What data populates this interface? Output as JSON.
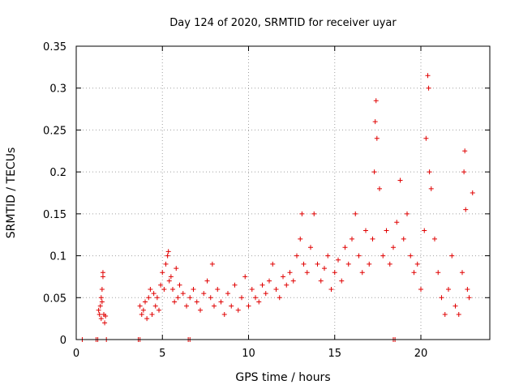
{
  "chart_data": {
    "type": "scatter",
    "title": "Day 124 of 2020, SRMTID for receiver uyar",
    "xlabel": "GPS time / hours",
    "ylabel": "SRMTID / TECUs",
    "xlim": [
      0,
      24
    ],
    "ylim": [
      0,
      0.35
    ],
    "x_ticks": [
      0,
      5,
      10,
      15,
      20
    ],
    "y_ticks": [
      0,
      0.05,
      0.1,
      0.15,
      0.2,
      0.25,
      0.3,
      0.35
    ],
    "x_tick_labels": [
      "0",
      "5",
      "10",
      "15",
      "20"
    ],
    "y_tick_labels": [
      "0",
      "0.05",
      "0.1",
      "0.15",
      "0.2",
      "0.25",
      "0.3",
      "0.35"
    ],
    "grid": true,
    "marker": "+",
    "color": "#e00000",
    "series": [
      {
        "name": "SRMTID",
        "points": [
          [
            0.35,
            0.0
          ],
          [
            1.15,
            0.0
          ],
          [
            1.25,
            0.0
          ],
          [
            1.75,
            0.0
          ],
          [
            3.6,
            0.0
          ],
          [
            3.7,
            0.0
          ],
          [
            6.5,
            0.0
          ],
          [
            6.6,
            0.0
          ],
          [
            18.4,
            0.0
          ],
          [
            18.5,
            0.0
          ],
          [
            1.3,
            0.035
          ],
          [
            1.35,
            0.03
          ],
          [
            1.4,
            0.04
          ],
          [
            1.45,
            0.025
          ],
          [
            1.5,
            0.045
          ],
          [
            1.55,
            0.08
          ],
          [
            1.55,
            0.075
          ],
          [
            1.5,
            0.06
          ],
          [
            1.6,
            0.03
          ],
          [
            1.65,
            0.02
          ],
          [
            1.7,
            0.028
          ],
          [
            1.45,
            0.05
          ],
          [
            3.7,
            0.04
          ],
          [
            3.8,
            0.03
          ],
          [
            3.9,
            0.035
          ],
          [
            4.0,
            0.045
          ],
          [
            4.1,
            0.025
          ],
          [
            4.2,
            0.05
          ],
          [
            4.3,
            0.06
          ],
          [
            4.4,
            0.03
          ],
          [
            4.5,
            0.055
          ],
          [
            4.6,
            0.04
          ],
          [
            4.7,
            0.05
          ],
          [
            4.8,
            0.035
          ],
          [
            4.9,
            0.065
          ],
          [
            5.0,
            0.08
          ],
          [
            5.1,
            0.06
          ],
          [
            5.2,
            0.09
          ],
          [
            5.3,
            0.1
          ],
          [
            5.35,
            0.105
          ],
          [
            5.4,
            0.07
          ],
          [
            5.5,
            0.075
          ],
          [
            5.6,
            0.06
          ],
          [
            5.7,
            0.045
          ],
          [
            5.8,
            0.085
          ],
          [
            5.9,
            0.05
          ],
          [
            6.0,
            0.065
          ],
          [
            6.2,
            0.055
          ],
          [
            6.4,
            0.04
          ],
          [
            6.6,
            0.05
          ],
          [
            6.8,
            0.06
          ],
          [
            7.0,
            0.045
          ],
          [
            7.2,
            0.035
          ],
          [
            7.4,
            0.055
          ],
          [
            7.6,
            0.07
          ],
          [
            7.8,
            0.05
          ],
          [
            7.9,
            0.09
          ],
          [
            8.0,
            0.04
          ],
          [
            8.2,
            0.06
          ],
          [
            8.4,
            0.045
          ],
          [
            8.6,
            0.03
          ],
          [
            8.8,
            0.055
          ],
          [
            9.0,
            0.04
          ],
          [
            9.2,
            0.065
          ],
          [
            9.4,
            0.035
          ],
          [
            9.6,
            0.05
          ],
          [
            9.8,
            0.075
          ],
          [
            10.0,
            0.04
          ],
          [
            10.2,
            0.06
          ],
          [
            10.4,
            0.05
          ],
          [
            10.6,
            0.045
          ],
          [
            10.8,
            0.065
          ],
          [
            11.0,
            0.055
          ],
          [
            11.2,
            0.07
          ],
          [
            11.4,
            0.09
          ],
          [
            11.6,
            0.06
          ],
          [
            11.8,
            0.05
          ],
          [
            12.0,
            0.075
          ],
          [
            12.2,
            0.065
          ],
          [
            12.4,
            0.08
          ],
          [
            12.6,
            0.07
          ],
          [
            12.8,
            0.1
          ],
          [
            13.0,
            0.12
          ],
          [
            13.1,
            0.15
          ],
          [
            13.2,
            0.09
          ],
          [
            13.4,
            0.08
          ],
          [
            13.6,
            0.11
          ],
          [
            13.8,
            0.15
          ],
          [
            14.0,
            0.09
          ],
          [
            14.2,
            0.07
          ],
          [
            14.4,
            0.085
          ],
          [
            14.6,
            0.1
          ],
          [
            14.8,
            0.06
          ],
          [
            15.0,
            0.08
          ],
          [
            15.2,
            0.095
          ],
          [
            15.4,
            0.07
          ],
          [
            15.6,
            0.11
          ],
          [
            15.8,
            0.09
          ],
          [
            16.0,
            0.12
          ],
          [
            16.2,
            0.15
          ],
          [
            16.4,
            0.1
          ],
          [
            16.6,
            0.08
          ],
          [
            16.8,
            0.13
          ],
          [
            17.0,
            0.09
          ],
          [
            17.2,
            0.12
          ],
          [
            17.3,
            0.2
          ],
          [
            17.35,
            0.26
          ],
          [
            17.4,
            0.285
          ],
          [
            17.45,
            0.24
          ],
          [
            17.6,
            0.18
          ],
          [
            17.8,
            0.1
          ],
          [
            18.0,
            0.13
          ],
          [
            18.2,
            0.09
          ],
          [
            18.4,
            0.11
          ],
          [
            18.6,
            0.14
          ],
          [
            18.8,
            0.19
          ],
          [
            19.0,
            0.12
          ],
          [
            19.2,
            0.15
          ],
          [
            19.4,
            0.1
          ],
          [
            19.6,
            0.08
          ],
          [
            19.8,
            0.09
          ],
          [
            20.0,
            0.06
          ],
          [
            20.2,
            0.13
          ],
          [
            20.3,
            0.24
          ],
          [
            20.4,
            0.315
          ],
          [
            20.45,
            0.3
          ],
          [
            20.5,
            0.2
          ],
          [
            20.6,
            0.18
          ],
          [
            20.8,
            0.12
          ],
          [
            21.0,
            0.08
          ],
          [
            21.2,
            0.05
          ],
          [
            21.4,
            0.03
          ],
          [
            21.6,
            0.06
          ],
          [
            21.8,
            0.1
          ],
          [
            22.0,
            0.04
          ],
          [
            22.2,
            0.03
          ],
          [
            22.4,
            0.08
          ],
          [
            22.5,
            0.2
          ],
          [
            22.55,
            0.225
          ],
          [
            22.6,
            0.155
          ],
          [
            22.7,
            0.06
          ],
          [
            22.8,
            0.05
          ],
          [
            23.0,
            0.175
          ]
        ]
      }
    ]
  }
}
